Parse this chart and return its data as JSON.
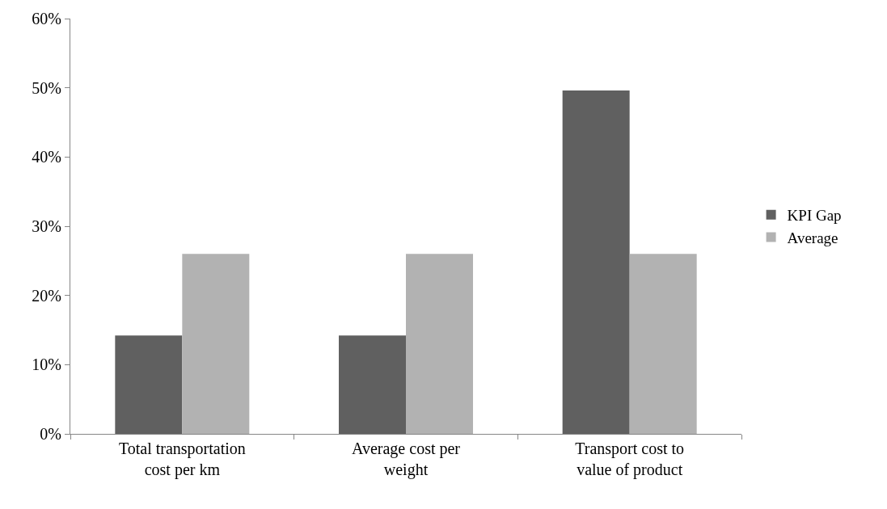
{
  "chart_data": {
    "type": "bar",
    "categories": [
      "Total transportation cost per km",
      "Average cost per weight",
      "Transport cost to value of product"
    ],
    "series": [
      {
        "name": "KPI Gap",
        "color": "#606060",
        "values": [
          14.2,
          14.2,
          49.6
        ]
      },
      {
        "name": "Average",
        "color": "#b2b2b2",
        "values": [
          26,
          26,
          26
        ]
      }
    ],
    "ylim": [
      0,
      60
    ],
    "yticks": [
      {
        "value": 0,
        "label": "0%"
      },
      {
        "value": 10,
        "label": "10%"
      },
      {
        "value": 20,
        "label": "20%"
      },
      {
        "value": 30,
        "label": "30%"
      },
      {
        "value": 40,
        "label": "40%"
      },
      {
        "value": 50,
        "label": "50%"
      },
      {
        "value": 60,
        "label": "60%"
      }
    ],
    "legend": "right"
  }
}
